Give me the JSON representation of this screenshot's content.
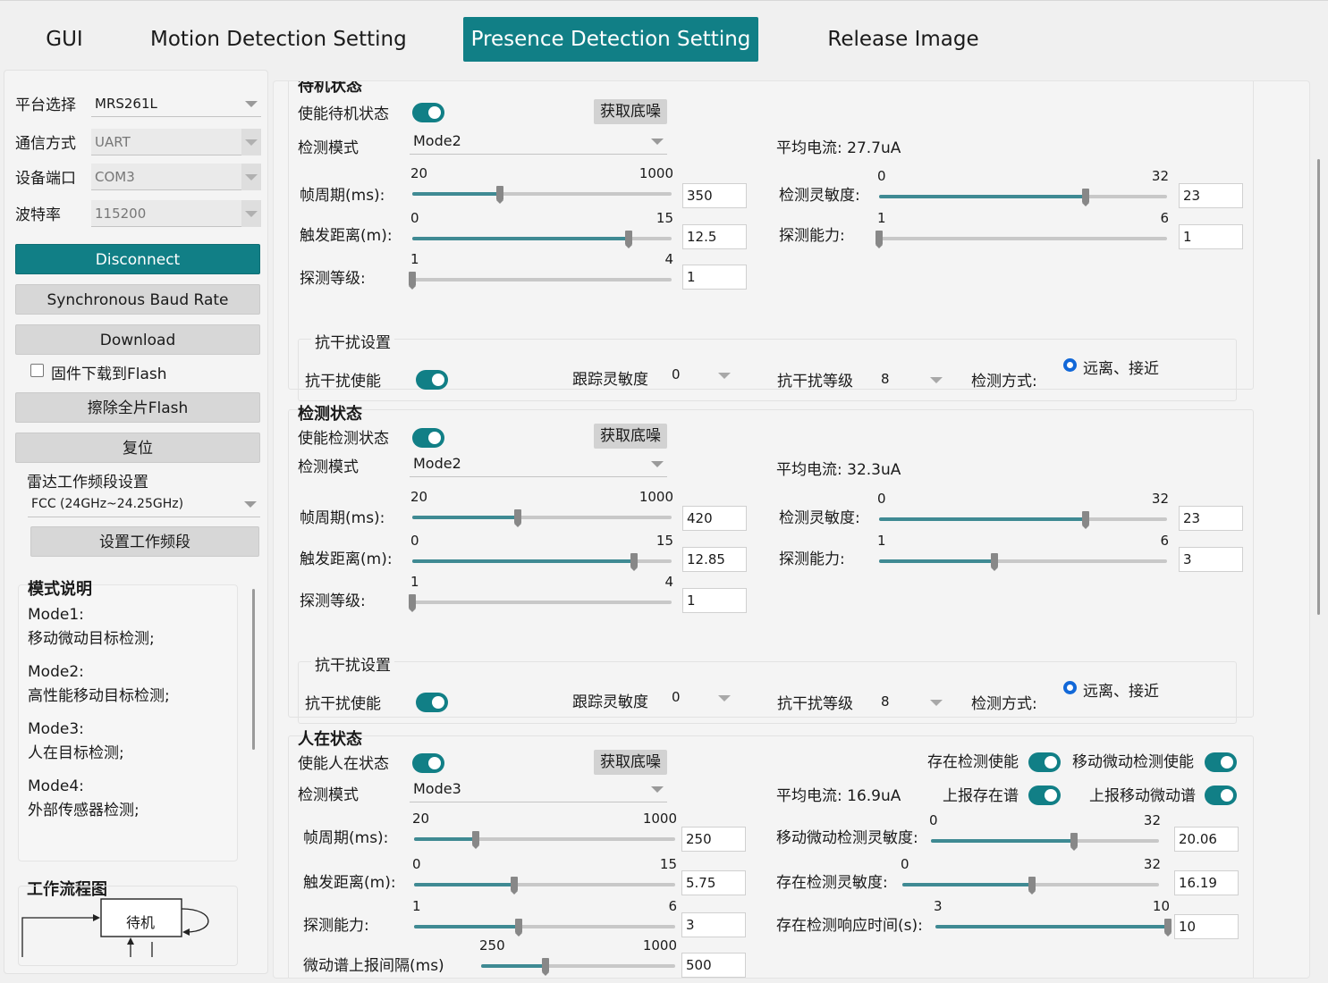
{
  "tabs": [
    {
      "label": "GUI",
      "active": false
    },
    {
      "label": "Motion Detection Setting",
      "active": false
    },
    {
      "label": "Presence Detection Setting",
      "active": true
    },
    {
      "label": "Release Image",
      "active": false
    }
  ],
  "left": {
    "platform_label": "平台选择",
    "platform_value": "MRS261L",
    "comm_label": "通信方式",
    "comm_value": "UART",
    "port_label": "设备端口",
    "port_value": "COM3",
    "baud_label": "波特率",
    "baud_value": "115200",
    "disconnect_label": "Disconnect",
    "sync_baud_label": "Synchronous Baud Rate",
    "download_label": "Download",
    "flash_checkbox_label": "固件下载到Flash",
    "flash_checked": false,
    "erase_label": "擦除全片Flash",
    "reset_label": "复位",
    "radar_band_label": "雷达工作频段设置",
    "radar_band_value": "FCC (24GHz~24.25GHz)",
    "set_band_label": "设置工作频段",
    "mode_title": "模式说明",
    "modes": [
      {
        "name": "Mode1:",
        "desc": "移动微动目标检测;"
      },
      {
        "name": "Mode2:",
        "desc": "高性能移动目标检测;"
      },
      {
        "name": "Mode3:",
        "desc": "人在目标检测;"
      },
      {
        "name": "Mode4:",
        "desc": "外部传感器检测;"
      }
    ],
    "flow_title": "工作流程图",
    "flow_node": "待机"
  },
  "sections": {
    "standby": {
      "title": "待机状态",
      "enable_label": "使能待机状态",
      "enabled": true,
      "noise_button": "获取底噪",
      "mode_label": "检测模式",
      "mode_value": "Mode2",
      "avg_current": "平均电流: 27.7uA",
      "frame_label": "帧周期(ms):",
      "frame": {
        "min": "20",
        "max": "1000",
        "value": "350",
        "lo": 20,
        "hi": 1000,
        "v": 350
      },
      "trigger_label": "触发距离(m):",
      "trigger": {
        "min": "0",
        "max": "15",
        "value": "12.5",
        "lo": 0,
        "hi": 15,
        "v": 12.5
      },
      "level_label": "探测等级:",
      "level": {
        "min": "1",
        "max": "4",
        "value": "1",
        "lo": 1,
        "hi": 4,
        "v": 1
      },
      "sens_label": "检测灵敏度:",
      "sens": {
        "min": "0",
        "max": "32",
        "value": "23",
        "lo": 0,
        "hi": 32,
        "v": 23
      },
      "ability_label": "探测能力:",
      "ability": {
        "min": "1",
        "max": "6",
        "value": "1",
        "lo": 1,
        "hi": 6,
        "v": 1
      },
      "anti_title": "抗干扰设置",
      "anti_enable_label": "抗干扰使能",
      "anti_enabled": true,
      "track_sens_label": "跟踪灵敏度",
      "track_sens_value": "0",
      "anti_level_label": "抗干扰等级",
      "anti_level_value": "8",
      "detect_method_label": "检测方式:",
      "detect_method_value": "远离、接近"
    },
    "detect": {
      "title": "检测状态",
      "enable_label": "使能检测状态",
      "enabled": true,
      "noise_button": "获取底噪",
      "mode_label": "检测模式",
      "mode_value": "Mode2",
      "avg_current": "平均电流: 32.3uA",
      "frame_label": "帧周期(ms):",
      "frame": {
        "min": "20",
        "max": "1000",
        "value": "420",
        "lo": 20,
        "hi": 1000,
        "v": 420
      },
      "trigger_label": "触发距离(m):",
      "trigger": {
        "min": "0",
        "max": "15",
        "value": "12.85",
        "lo": 0,
        "hi": 15,
        "v": 12.85
      },
      "level_label": "探测等级:",
      "level": {
        "min": "1",
        "max": "4",
        "value": "1",
        "lo": 1,
        "hi": 4,
        "v": 1
      },
      "sens_label": "检测灵敏度:",
      "sens": {
        "min": "0",
        "max": "32",
        "value": "23",
        "lo": 0,
        "hi": 32,
        "v": 23
      },
      "ability_label": "探测能力:",
      "ability": {
        "min": "1",
        "max": "6",
        "value": "3",
        "lo": 1,
        "hi": 6,
        "v": 3
      },
      "anti_title": "抗干扰设置",
      "anti_enable_label": "抗干扰使能",
      "anti_enabled": true,
      "track_sens_label": "跟踪灵敏度",
      "track_sens_value": "0",
      "anti_level_label": "抗干扰等级",
      "anti_level_value": "8",
      "detect_method_label": "检测方式:",
      "detect_method_value": "远离、接近"
    },
    "presence": {
      "title": "人在状态",
      "enable_label": "使能人在状态",
      "enabled": true,
      "noise_button": "获取底噪",
      "mode_label": "检测模式",
      "mode_value": "Mode3",
      "avg_current": "平均电流: 16.9uA",
      "exist_enable_label": "存在检测使能",
      "micro_enable_label": "移动微动检测使能",
      "report_exist_label": "上报存在谱",
      "report_micro_label": "上报移动微动谱",
      "frame_label": "帧周期(ms):",
      "frame": {
        "min": "20",
        "max": "1000",
        "value": "250",
        "lo": 20,
        "hi": 1000,
        "v": 250
      },
      "trigger_label": "触发距离(m):",
      "trigger": {
        "min": "0",
        "max": "15",
        "value": "5.75",
        "lo": 0,
        "hi": 15,
        "v": 5.75
      },
      "ability_label": "探测能力:",
      "ability": {
        "min": "1",
        "max": "6",
        "value": "3",
        "lo": 1,
        "hi": 6,
        "v": 3
      },
      "report_interval_label": "微动谱上报间隔(ms)",
      "report_interval": {
        "min": "250",
        "max": "1000",
        "value": "500",
        "lo": 250,
        "hi": 1000,
        "v": 500
      },
      "micro_sens_label": "移动微动检测灵敏度:",
      "micro_sens": {
        "min": "0",
        "max": "32",
        "value": "20.06",
        "lo": 0,
        "hi": 32,
        "v": 20.06
      },
      "exist_sens_label": "存在检测灵敏度:",
      "exist_sens": {
        "min": "0",
        "max": "32",
        "value": "16.19",
        "lo": 0,
        "hi": 32,
        "v": 16.19
      },
      "exist_resp_label": "存在检测响应时间(s):",
      "exist_resp": {
        "min": "3",
        "max": "10",
        "value": "10",
        "lo": 3,
        "hi": 10,
        "v": 10
      }
    }
  },
  "colors": {
    "accent": "#117f86",
    "slider_fill": "#3f8a93",
    "radio": "#1268d8"
  }
}
